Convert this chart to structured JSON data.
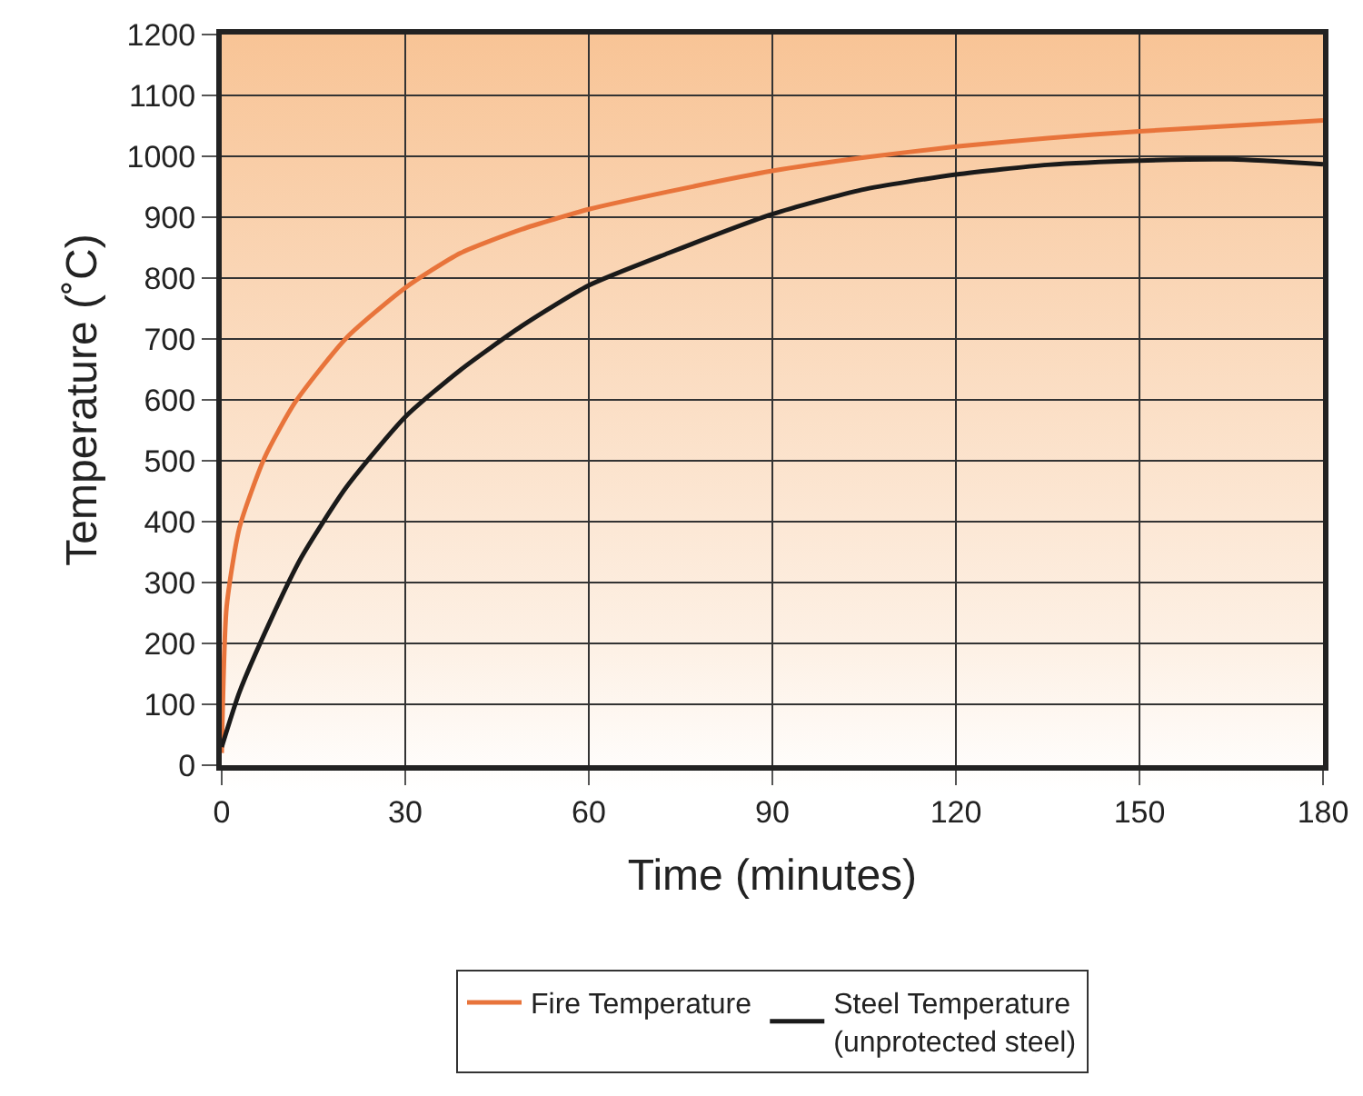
{
  "chart_data": {
    "type": "line",
    "xlabel": "Time (minutes)",
    "ylabel": "Temperature (˚C)",
    "xlim": [
      0,
      180
    ],
    "xticks": [
      0,
      30,
      60,
      90,
      120,
      150,
      180
    ],
    "ylim": [
      0,
      1200
    ],
    "yticks": [
      0,
      100,
      200,
      300,
      400,
      500,
      600,
      700,
      800,
      900,
      1000,
      1100,
      1200
    ],
    "grid": true,
    "legend": "bottom",
    "marker": "none",
    "line_style": "solid",
    "series": [
      {
        "name": "Fire Temperature",
        "color": "#e8743b",
        "x": [
          0,
          0.8,
          2.9,
          7,
          12,
          20.4,
          30,
          39,
          49,
          60,
          73,
          90,
          105,
          120,
          135,
          150,
          165,
          180
        ],
        "values": [
          20,
          260,
          390,
          505,
          596,
          702,
          784,
          841,
          880,
          913,
          942,
          976,
          998,
          1016,
          1030,
          1041,
          1050,
          1059
        ]
      },
      {
        "name": "Steel Temperature\n(unprotected steel)",
        "color": "#1a1a1a",
        "x": [
          0,
          2.9,
          7.9,
          13,
          20.4,
          30,
          39,
          49,
          60,
          73,
          90,
          104.6,
          120,
          135,
          150,
          165,
          180
        ],
        "values": [
          30,
          120,
          236,
          341,
          457,
          572,
          649,
          721,
          788,
          841,
          905,
          945,
          970,
          986,
          993,
          995,
          987
        ]
      }
    ]
  }
}
